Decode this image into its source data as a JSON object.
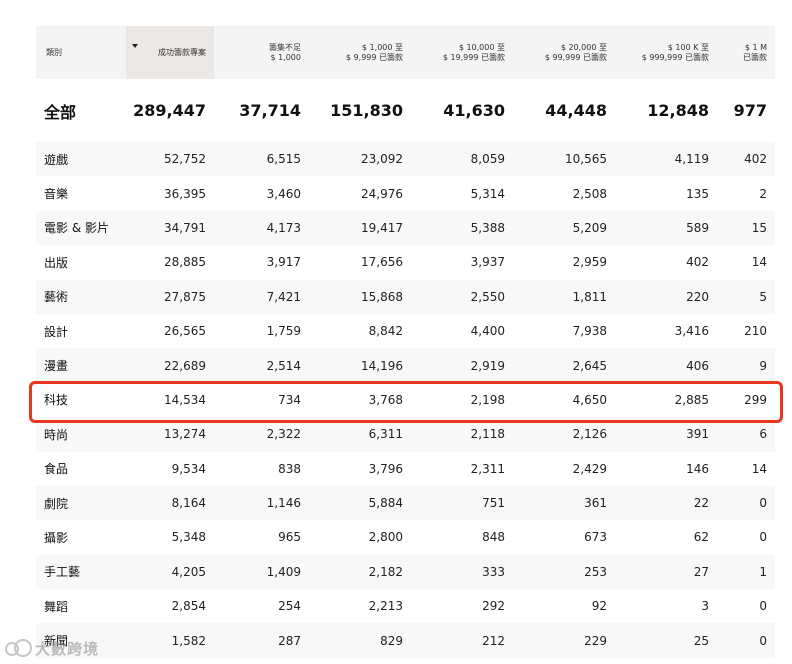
{
  "table": {
    "headers": [
      {
        "label1": "類別",
        "label2": ""
      },
      {
        "label1": "成功籌款專案",
        "label2": ""
      },
      {
        "label1": "籌集不足",
        "label2": "$ 1,000"
      },
      {
        "label1": "$ 1,000 至",
        "label2": "$ 9,999 已籌款"
      },
      {
        "label1": "$ 10,000 至",
        "label2": "$ 19,999 已籌款"
      },
      {
        "label1": "$ 20,000 至",
        "label2": "$ 99,999 已籌款"
      },
      {
        "label1": "$ 100 K 至",
        "label2": "$ 999,999 已籌款"
      },
      {
        "label1": "$ 1 M",
        "label2": "已籌款"
      }
    ],
    "total": [
      "全部",
      "289,447",
      "37,714",
      "151,830",
      "41,630",
      "44,448",
      "12,848",
      "977"
    ],
    "rows": [
      [
        "遊戲",
        "52,752",
        "6,515",
        "23,092",
        "8,059",
        "10,565",
        "4,119",
        "402"
      ],
      [
        "音樂",
        "36,395",
        "3,460",
        "24,976",
        "5,314",
        "2,508",
        "135",
        "2"
      ],
      [
        "電影 & 影片",
        "34,791",
        "4,173",
        "19,417",
        "5,388",
        "5,209",
        "589",
        "15"
      ],
      [
        "出版",
        "28,885",
        "3,917",
        "17,656",
        "3,937",
        "2,959",
        "402",
        "14"
      ],
      [
        "藝術",
        "27,875",
        "7,421",
        "15,868",
        "2,550",
        "1,811",
        "220",
        "5"
      ],
      [
        "設計",
        "26,565",
        "1,759",
        "8,842",
        "4,400",
        "7,938",
        "3,416",
        "210"
      ],
      [
        "漫畫",
        "22,689",
        "2,514",
        "14,196",
        "2,919",
        "2,645",
        "406",
        "9"
      ],
      [
        "科技",
        "14,534",
        "734",
        "3,768",
        "2,198",
        "4,650",
        "2,885",
        "299"
      ],
      [
        "時尚",
        "13,274",
        "2,322",
        "6,311",
        "2,118",
        "2,126",
        "391",
        "6"
      ],
      [
        "食品",
        "9,534",
        "838",
        "3,796",
        "2,311",
        "2,429",
        "146",
        "14"
      ],
      [
        "劇院",
        "8,164",
        "1,146",
        "5,884",
        "751",
        "361",
        "22",
        "0"
      ],
      [
        "攝影",
        "5,348",
        "965",
        "2,800",
        "848",
        "673",
        "62",
        "0"
      ],
      [
        "手工藝",
        "4,205",
        "1,409",
        "2,182",
        "333",
        "253",
        "27",
        "1"
      ],
      [
        "舞蹈",
        "2,854",
        "254",
        "2,213",
        "292",
        "92",
        "3",
        "0"
      ],
      [
        "新聞",
        "1,582",
        "287",
        "829",
        "212",
        "229",
        "25",
        "0"
      ]
    ]
  },
  "highlight": {
    "row_label": "科技",
    "color": "#e8371f"
  },
  "watermark": {
    "text": "大數跨境"
  }
}
